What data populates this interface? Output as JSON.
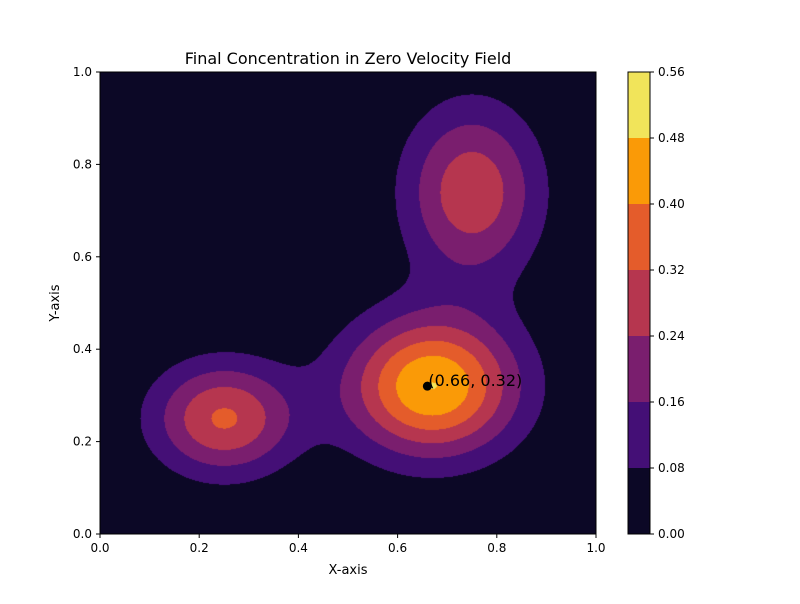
{
  "chart_data": {
    "type": "heatmap",
    "subtype": "filled-contour",
    "title": "Final Concentration in Zero Velocity Field",
    "xlabel": "X-axis",
    "ylabel": "Y-axis",
    "xlim": [
      0,
      1
    ],
    "ylim": [
      0,
      1
    ],
    "x_ticks": [
      0.0,
      0.2,
      0.4,
      0.6,
      0.8,
      1.0
    ],
    "y_ticks": [
      0.0,
      0.2,
      0.4,
      0.6,
      0.8,
      1.0
    ],
    "x_tick_labels": [
      "0.0",
      "0.2",
      "0.4",
      "0.6",
      "0.8",
      "1.0"
    ],
    "y_tick_labels": [
      "0.0",
      "0.2",
      "0.4",
      "0.6",
      "0.8",
      "1.0"
    ],
    "colormap": "inferno",
    "colorbar": {
      "levels": [
        0.0,
        0.08,
        0.16,
        0.24,
        0.32,
        0.4,
        0.48,
        0.56
      ],
      "labels": [
        "0.00",
        "0.08",
        "0.16",
        "0.24",
        "0.32",
        "0.40",
        "0.48",
        "0.56"
      ],
      "colors": [
        "#0c0826",
        "#440f76",
        "#7a1e6e",
        "#b6364f",
        "#e45c2b",
        "#fa9a07",
        "#f1e45a"
      ]
    },
    "peaks": [
      {
        "x": 0.67,
        "y": 0.32,
        "sx": 0.12,
        "sy": 0.105,
        "amp": 0.48
      },
      {
        "x": 0.25,
        "y": 0.25,
        "sx": 0.1,
        "sy": 0.085,
        "amp": 0.33
      },
      {
        "x": 0.75,
        "y": 0.74,
        "sx": 0.095,
        "sy": 0.13,
        "amp": 0.3
      }
    ],
    "annotation": {
      "x": 0.66,
      "y": 0.32,
      "text": "(0.66, 0.32)"
    },
    "grid": false
  }
}
